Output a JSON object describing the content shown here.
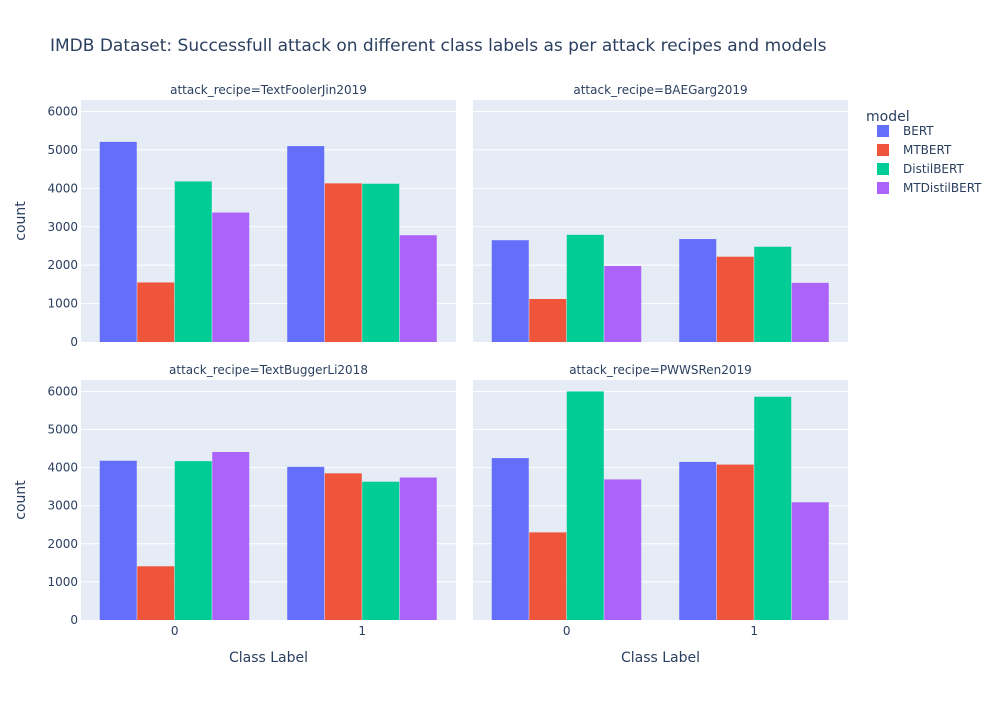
{
  "chart_data": {
    "type": "bar",
    "title": "IMDB Dataset: Successfull attack on different class labels as per attack recipes and models",
    "xlabel": "Class Label",
    "ylabel": "count",
    "categories": [
      "0",
      "1"
    ],
    "ylim": [
      0,
      6300
    ],
    "yticks": [
      0,
      1000,
      2000,
      3000,
      4000,
      5000,
      6000
    ],
    "grid": true,
    "legend": {
      "title": "model",
      "placement": "right",
      "entries": [
        "BERT",
        "MTBERT",
        "DistilBERT",
        "MTDistilBERT"
      ]
    },
    "series_colors": {
      "BERT": "#636efa",
      "MTBERT": "#ef553b",
      "DistilBERT": "#00cc96",
      "MTDistilBERT": "#ab63fa"
    },
    "panels": [
      {
        "title": "attack_recipe=TextFoolerJin2019",
        "series": [
          {
            "name": "BERT",
            "values": [
              5210,
              5100
            ]
          },
          {
            "name": "MTBERT",
            "values": [
              1550,
              4130
            ]
          },
          {
            "name": "DistilBERT",
            "values": [
              4180,
              4120
            ]
          },
          {
            "name": "MTDistilBERT",
            "values": [
              3370,
              2780
            ]
          }
        ]
      },
      {
        "title": "attack_recipe=BAEGarg2019",
        "series": [
          {
            "name": "BERT",
            "values": [
              2650,
              2680
            ]
          },
          {
            "name": "MTBERT",
            "values": [
              1120,
              2220
            ]
          },
          {
            "name": "DistilBERT",
            "values": [
              2790,
              2480
            ]
          },
          {
            "name": "MTDistilBERT",
            "values": [
              1980,
              1540
            ]
          }
        ]
      },
      {
        "title": "attack_recipe=TextBuggerLi2018",
        "series": [
          {
            "name": "BERT",
            "values": [
              4180,
              4020
            ]
          },
          {
            "name": "MTBERT",
            "values": [
              1410,
              3850
            ]
          },
          {
            "name": "DistilBERT",
            "values": [
              4170,
              3630
            ]
          },
          {
            "name": "MTDistilBERT",
            "values": [
              4410,
              3740
            ]
          }
        ]
      },
      {
        "title": "attack_recipe=PWWSRen2019",
        "series": [
          {
            "name": "BERT",
            "values": [
              4250,
              4150
            ]
          },
          {
            "name": "MTBERT",
            "values": [
              2300,
              4080
            ]
          },
          {
            "name": "DistilBERT",
            "values": [
              6000,
              5860
            ]
          },
          {
            "name": "MTDistilBERT",
            "values": [
              3690,
              3090
            ]
          }
        ]
      }
    ]
  }
}
